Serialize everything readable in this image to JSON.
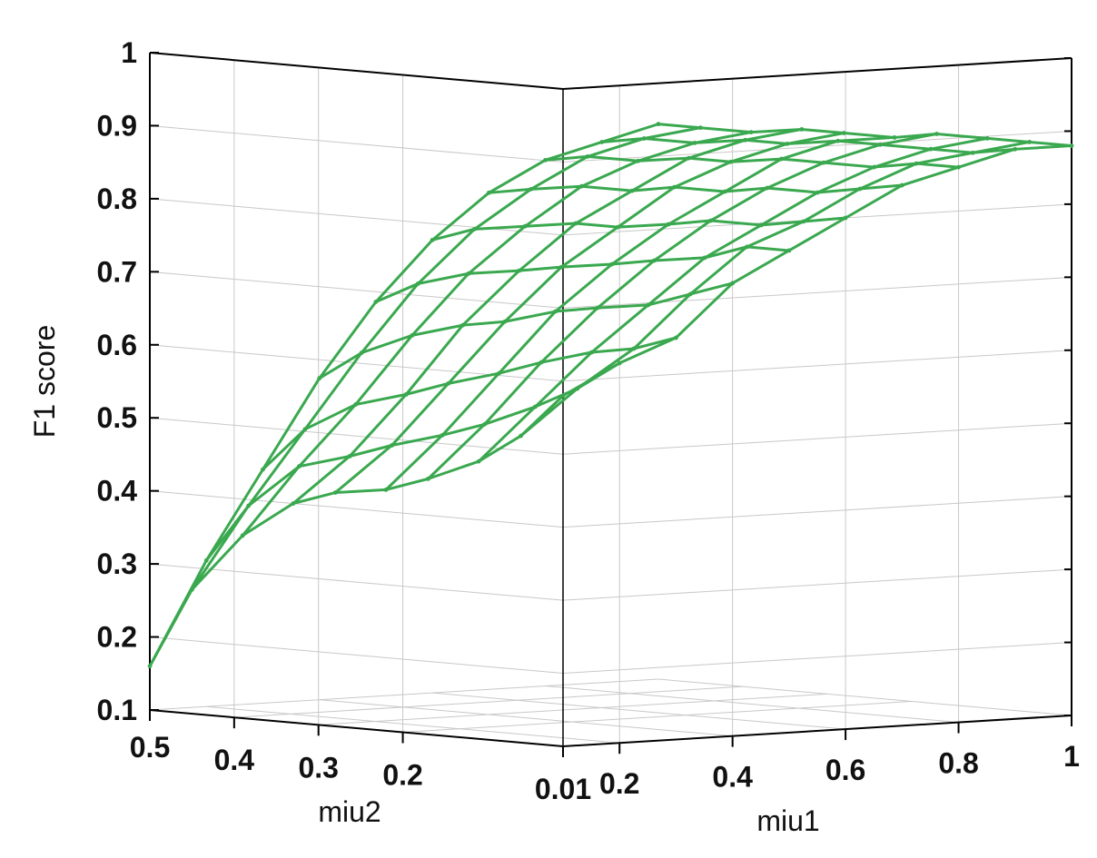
{
  "chart_data": {
    "type": "surface",
    "zlabel": "F1 score",
    "xlabel": "miu1",
    "ylabel": "miu2",
    "x_ticks": [
      "0.2",
      "0.4",
      "0.6",
      "0.8",
      "1"
    ],
    "y_ticks": [
      "0.5",
      "0.4",
      "0.3",
      "0.2",
      "0.01"
    ],
    "z_ticks": [
      "0.1",
      "0.2",
      "0.3",
      "0.4",
      "0.5",
      "0.6",
      "0.7",
      "0.8",
      "0.9",
      "1"
    ],
    "xlim": [
      0.1,
      1.0
    ],
    "ylim": [
      0.01,
      0.5
    ],
    "zlim": [
      0.1,
      1.0
    ],
    "grid": true,
    "colors": {
      "surface": "#3aa84f",
      "axes": "#000000",
      "grid": "#c8c8c8"
    },
    "miu1": [
      0.1,
      0.2,
      0.3,
      0.4,
      0.5,
      0.6,
      0.7,
      0.8,
      0.9,
      1.0
    ],
    "miu2": [
      0.01,
      0.06,
      0.11,
      0.17,
      0.22,
      0.28,
      0.33,
      0.39,
      0.45,
      0.5
    ],
    "f1": [
      [
        0.58,
        0.62,
        0.65,
        0.72,
        0.76,
        0.8,
        0.84,
        0.86,
        0.88,
        0.88
      ],
      [
        0.52,
        0.58,
        0.63,
        0.7,
        0.76,
        0.79,
        0.83,
        0.86,
        0.87,
        0.88
      ],
      [
        0.48,
        0.55,
        0.62,
        0.68,
        0.74,
        0.78,
        0.82,
        0.85,
        0.87,
        0.88
      ],
      [
        0.45,
        0.52,
        0.6,
        0.67,
        0.73,
        0.78,
        0.82,
        0.85,
        0.87,
        0.88
      ],
      [
        0.43,
        0.5,
        0.58,
        0.66,
        0.72,
        0.77,
        0.81,
        0.85,
        0.87,
        0.87
      ],
      [
        0.42,
        0.48,
        0.56,
        0.64,
        0.71,
        0.76,
        0.81,
        0.84,
        0.86,
        0.87
      ],
      [
        0.4,
        0.46,
        0.54,
        0.63,
        0.7,
        0.76,
        0.8,
        0.84,
        0.86,
        0.87
      ],
      [
        0.35,
        0.44,
        0.52,
        0.61,
        0.69,
        0.75,
        0.8,
        0.83,
        0.85,
        0.86
      ],
      [
        0.27,
        0.38,
        0.48,
        0.58,
        0.67,
        0.74,
        0.79,
        0.83,
        0.85,
        0.86
      ],
      [
        0.16,
        0.3,
        0.42,
        0.54,
        0.64,
        0.72,
        0.78,
        0.82,
        0.84,
        0.86
      ]
    ]
  }
}
